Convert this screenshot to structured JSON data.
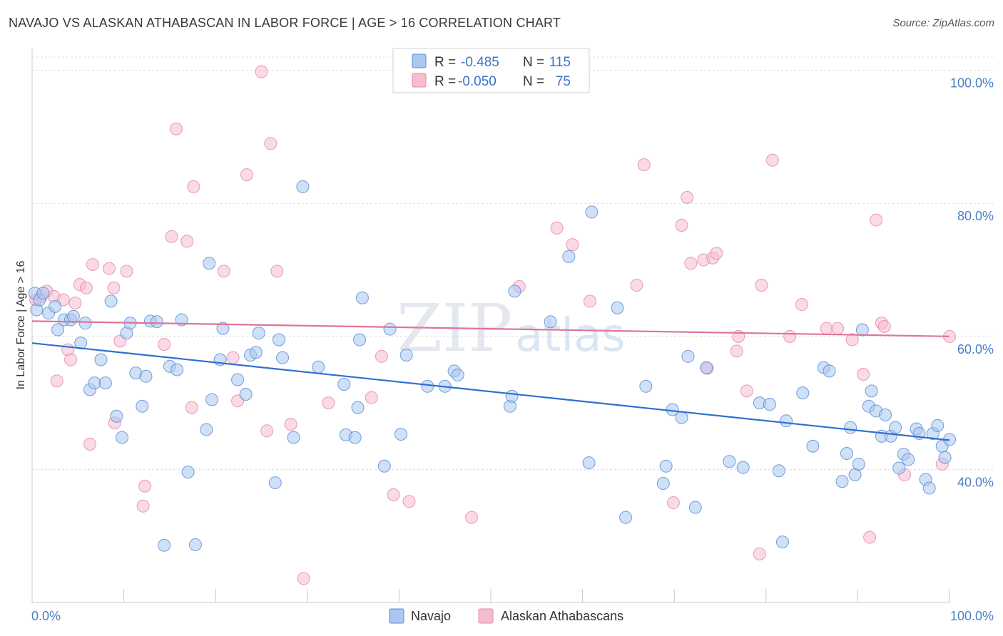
{
  "title": "NAVAJO VS ALASKAN ATHABASCAN IN LABOR FORCE | AGE > 16 CORRELATION CHART",
  "source": "Source: ZipAtlas.com",
  "watermark": {
    "zip": "ZIP",
    "atlas": "atlas"
  },
  "legend": {
    "items": [
      {
        "r_label": "R =",
        "r_value": "-0.485",
        "n_label": "N =",
        "n_value": "115",
        "color": "#a9c7ef",
        "stroke": "#5b8fd6"
      },
      {
        "r_label": "R =",
        "r_value": "-0.050",
        "n_label": "N =",
        "n_value": "75",
        "color": "#f6bcd0",
        "stroke": "#e68aab"
      }
    ]
  },
  "chart_data": {
    "type": "scatter",
    "title": "NAVAJO VS ALASKAN ATHABASCAN IN LABOR FORCE | AGE > 16 CORRELATION CHART",
    "xlabel": "",
    "ylabel": "In Labor Force | Age > 16",
    "xlim": [
      0,
      100
    ],
    "ylim": [
      20,
      102
    ],
    "x_tick_labels": [
      "0.0%",
      "100.0%"
    ],
    "y_ticks": [
      40,
      60,
      80,
      100
    ],
    "y_tick_labels": [
      "40.0%",
      "60.0%",
      "80.0%",
      "100.0%"
    ],
    "grid": true,
    "series": [
      {
        "name": "Navajo",
        "color": "#a9c7ef",
        "stroke": "#5b8fd6",
        "trend": {
          "x": [
            0,
            100
          ],
          "y": [
            59.0,
            44.4
          ],
          "color": "#2f6fd0"
        },
        "points": [
          [
            0.3,
            66.5
          ],
          [
            0.5,
            64
          ],
          [
            0.8,
            65.5
          ],
          [
            1.2,
            66.5
          ],
          [
            1.8,
            63.5
          ],
          [
            2.5,
            64.5
          ],
          [
            2.8,
            61
          ],
          [
            3.5,
            62.5
          ],
          [
            4.2,
            62.5
          ],
          [
            4.5,
            63
          ],
          [
            5.3,
            59
          ],
          [
            5.8,
            62
          ],
          [
            6.3,
            52
          ],
          [
            6.8,
            53
          ],
          [
            7.5,
            56.5
          ],
          [
            8.0,
            53
          ],
          [
            8.6,
            65.3
          ],
          [
            9.2,
            48
          ],
          [
            9.8,
            44.8
          ],
          [
            10.3,
            60.5
          ],
          [
            10.7,
            62
          ],
          [
            11.3,
            54.5
          ],
          [
            12.0,
            49.5
          ],
          [
            12.4,
            54
          ],
          [
            12.9,
            62.3
          ],
          [
            13.6,
            62.2
          ],
          [
            14.4,
            28.6
          ],
          [
            15.0,
            55.5
          ],
          [
            15.8,
            55
          ],
          [
            16.3,
            62.5
          ],
          [
            17.0,
            39.6
          ],
          [
            17.8,
            28.7
          ],
          [
            19.0,
            46
          ],
          [
            19.3,
            71
          ],
          [
            19.6,
            50.5
          ],
          [
            20.5,
            56.5
          ],
          [
            20.8,
            61.2
          ],
          [
            22.4,
            53.5
          ],
          [
            23.3,
            51.3
          ],
          [
            23.8,
            57.2
          ],
          [
            24.4,
            57.6
          ],
          [
            24.7,
            60.5
          ],
          [
            26.5,
            38
          ],
          [
            26.9,
            59.5
          ],
          [
            27.3,
            56.8
          ],
          [
            28.5,
            44.8
          ],
          [
            29.5,
            82.5
          ],
          [
            31.2,
            55.4
          ],
          [
            34.0,
            52.8
          ],
          [
            34.2,
            45.2
          ],
          [
            35.2,
            44.8
          ],
          [
            35.5,
            49.3
          ],
          [
            35.7,
            59.5
          ],
          [
            36.0,
            65.8
          ],
          [
            38.4,
            40.5
          ],
          [
            39.0,
            61.1
          ],
          [
            40.2,
            45.3
          ],
          [
            40.8,
            57.2
          ],
          [
            43.1,
            52.5
          ],
          [
            45.0,
            52.5
          ],
          [
            46.0,
            54.8
          ],
          [
            46.4,
            54.2
          ],
          [
            52.1,
            49.5
          ],
          [
            52.3,
            51
          ],
          [
            52.6,
            66.8
          ],
          [
            56.5,
            62.2
          ],
          [
            58.5,
            72
          ],
          [
            60.7,
            41
          ],
          [
            61.0,
            78.7
          ],
          [
            63.8,
            64.3
          ],
          [
            64.7,
            32.8
          ],
          [
            66.9,
            52.5
          ],
          [
            68.8,
            37.9
          ],
          [
            69.1,
            40.5
          ],
          [
            69.8,
            49
          ],
          [
            70.8,
            47.8
          ],
          [
            71.5,
            57
          ],
          [
            72.3,
            34.3
          ],
          [
            73.5,
            55.3
          ],
          [
            76.0,
            41.2
          ],
          [
            77.5,
            40.3
          ],
          [
            79.3,
            50
          ],
          [
            80.4,
            49.8
          ],
          [
            81.4,
            39.8
          ],
          [
            81.8,
            29.1
          ],
          [
            82.2,
            47.3
          ],
          [
            84.0,
            51.5
          ],
          [
            85.1,
            43.5
          ],
          [
            86.3,
            55.3
          ],
          [
            86.9,
            54.8
          ],
          [
            88.3,
            38.2
          ],
          [
            88.8,
            42.4
          ],
          [
            89.2,
            46.3
          ],
          [
            89.7,
            39.2
          ],
          [
            90.1,
            40.8
          ],
          [
            90.5,
            61
          ],
          [
            91.2,
            49.5
          ],
          [
            91.5,
            51.8
          ],
          [
            92.0,
            48.8
          ],
          [
            92.6,
            45
          ],
          [
            93.0,
            48.2
          ],
          [
            93.6,
            45
          ],
          [
            94.1,
            46.3
          ],
          [
            94.5,
            40.2
          ],
          [
            95.0,
            42.3
          ],
          [
            95.5,
            41.5
          ],
          [
            96.4,
            46.1
          ],
          [
            96.7,
            45.4
          ],
          [
            97.4,
            38.5
          ],
          [
            97.8,
            37.2
          ],
          [
            98.2,
            45.4
          ],
          [
            98.7,
            46.6
          ],
          [
            99.2,
            43.5
          ],
          [
            99.5,
            41.8
          ],
          [
            100.0,
            44.5
          ]
        ]
      },
      {
        "name": "Alaskan Athabascans",
        "color": "#f6bcd0",
        "stroke": "#e68aab",
        "trend": {
          "x": [
            0,
            100
          ],
          "y": [
            62.3,
            60.0
          ],
          "color": "#e07499"
        },
        "points": [
          [
            0.4,
            65.5
          ],
          [
            1.0,
            66
          ],
          [
            1.6,
            66.8
          ],
          [
            2.4,
            66
          ],
          [
            2.7,
            53.3
          ],
          [
            3.4,
            65.5
          ],
          [
            3.9,
            58
          ],
          [
            4.2,
            56.5
          ],
          [
            4.7,
            65
          ],
          [
            5.2,
            67.8
          ],
          [
            5.9,
            67.3
          ],
          [
            6.3,
            43.8
          ],
          [
            6.6,
            70.8
          ],
          [
            8.4,
            70.2
          ],
          [
            8.9,
            67.3
          ],
          [
            9.0,
            47
          ],
          [
            9.6,
            59.3
          ],
          [
            10.3,
            69.8
          ],
          [
            12.1,
            34.5
          ],
          [
            12.3,
            37.5
          ],
          [
            14.4,
            58.8
          ],
          [
            15.2,
            75
          ],
          [
            15.7,
            91.2
          ],
          [
            16.9,
            74.3
          ],
          [
            17.4,
            49.3
          ],
          [
            17.6,
            82.5
          ],
          [
            20.9,
            69.8
          ],
          [
            21.9,
            56.8
          ],
          [
            22.4,
            50.3
          ],
          [
            23.4,
            84.3
          ],
          [
            25.0,
            99.8
          ],
          [
            25.6,
            45.8
          ],
          [
            26.0,
            89
          ],
          [
            26.7,
            69.8
          ],
          [
            28.2,
            46.8
          ],
          [
            29.6,
            23.6
          ],
          [
            32.3,
            50
          ],
          [
            37.0,
            50.8
          ],
          [
            38.1,
            57
          ],
          [
            39.4,
            36.2
          ],
          [
            41.1,
            35.2
          ],
          [
            47.9,
            32.8
          ],
          [
            53.1,
            67.5
          ],
          [
            57.2,
            76.3
          ],
          [
            58.9,
            73.8
          ],
          [
            60.8,
            65.3
          ],
          [
            65.9,
            67.7
          ],
          [
            66.7,
            85.8
          ],
          [
            69.9,
            35
          ],
          [
            70.8,
            76.7
          ],
          [
            71.4,
            80.9
          ],
          [
            71.8,
            71
          ],
          [
            73.2,
            71.5
          ],
          [
            73.6,
            55.2
          ],
          [
            74.2,
            71.8
          ],
          [
            74.6,
            72.5
          ],
          [
            76.8,
            57.8
          ],
          [
            77.0,
            60
          ],
          [
            77.9,
            51.8
          ],
          [
            79.3,
            27.3
          ],
          [
            79.5,
            67.7
          ],
          [
            80.7,
            86.5
          ],
          [
            82.6,
            60
          ],
          [
            83.9,
            64.8
          ],
          [
            86.6,
            61.2
          ],
          [
            87.8,
            61.2
          ],
          [
            89.4,
            59.5
          ],
          [
            90.6,
            54.3
          ],
          [
            91.3,
            29.8
          ],
          [
            92.0,
            77.5
          ],
          [
            92.6,
            62
          ],
          [
            92.9,
            61.5
          ],
          [
            95.1,
            39.2
          ],
          [
            99.2,
            40.8
          ],
          [
            100.0,
            60
          ]
        ]
      }
    ]
  }
}
